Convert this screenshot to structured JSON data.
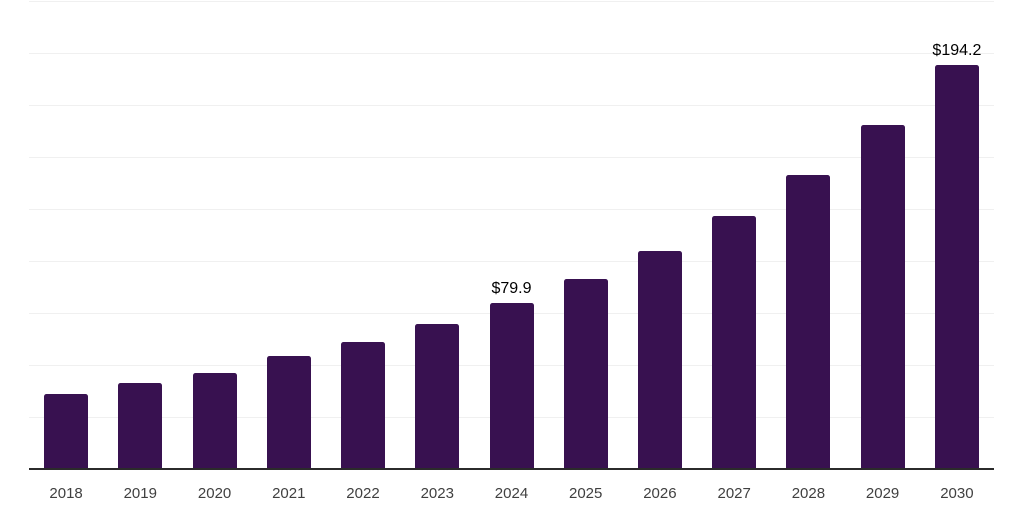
{
  "chart_data": {
    "type": "bar",
    "title": "",
    "xlabel": "",
    "ylabel": "",
    "categories": [
      "2018",
      "2019",
      "2020",
      "2021",
      "2022",
      "2023",
      "2024",
      "2025",
      "2026",
      "2027",
      "2028",
      "2029",
      "2030"
    ],
    "values": [
      36.3,
      41.2,
      46.1,
      54.2,
      61.2,
      69.8,
      79.9,
      91.4,
      105.0,
      121.7,
      141.4,
      165.6,
      194.2
    ],
    "data_labels": [
      {
        "category": "2024",
        "text": "$79.9"
      },
      {
        "category": "2030",
        "text": "$194.2"
      }
    ],
    "currency_prefix": "$",
    "ylim": [
      0,
      225
    ],
    "grid": {
      "horizontal": true,
      "vertical": false,
      "interval": 25
    },
    "legend_position": "none"
  },
  "colors": {
    "bar": "#381150",
    "gridline": "#f0f0f0",
    "axis_line": "#2b2b2b",
    "tick_label": "#404040",
    "data_label": "#000000",
    "background": "#ffffff"
  }
}
